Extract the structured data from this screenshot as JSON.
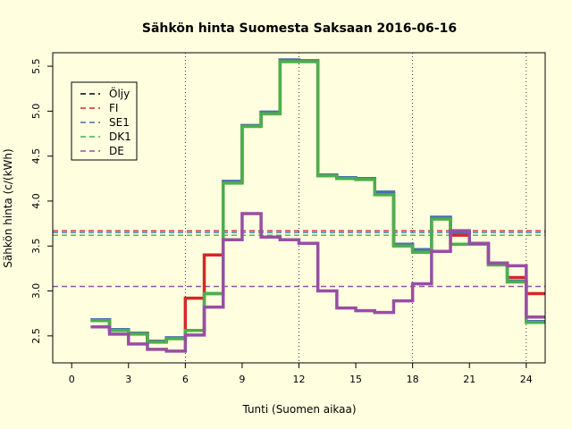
{
  "chart_data": {
    "type": "line",
    "title": "Sähkön hinta Suomesta Saksaan 2016-06-16",
    "xlabel": "Tunti (Suomen aikaa)",
    "ylabel": "Sähkön hinta (c/(kWh)",
    "xlim": [
      -1,
      25
    ],
    "ylim": [
      2.2,
      5.65
    ],
    "x_ticks": [
      0,
      3,
      6,
      9,
      12,
      15,
      18,
      21,
      24
    ],
    "y_ticks": [
      2.5,
      3.0,
      3.5,
      4.0,
      4.5,
      5.0,
      5.5
    ],
    "y_tick_labels": [
      "2.5",
      "3.0",
      "3.5",
      "4.0",
      "4.5",
      "5.0",
      "5.5"
    ],
    "vertical_gridlines": [
      6,
      12,
      18,
      24
    ],
    "step_style": "step-after",
    "x": [
      1,
      2,
      3,
      4,
      5,
      6,
      7,
      8,
      9,
      10,
      11,
      12,
      13,
      14,
      15,
      16,
      17,
      18,
      19,
      20,
      21,
      22,
      23,
      24,
      25
    ],
    "series": [
      {
        "name": "FI",
        "color": "#d62728",
        "width": 3.5,
        "values": [
          2.68,
          2.57,
          2.53,
          2.44,
          2.47,
          2.92,
          3.4,
          4.21,
          4.84,
          4.98,
          5.56,
          5.56,
          4.28,
          4.25,
          4.25,
          4.08,
          3.51,
          3.45,
          3.81,
          3.62,
          3.53,
          3.31,
          3.15,
          2.97,
          2.97
        ]
      },
      {
        "name": "SE1",
        "color": "#4a6fb0",
        "width": 3.5,
        "values": [
          2.68,
          2.57,
          2.53,
          2.44,
          2.48,
          2.56,
          2.97,
          4.22,
          4.84,
          4.99,
          5.57,
          5.56,
          4.29,
          4.26,
          4.25,
          4.1,
          3.52,
          3.46,
          3.82,
          3.65,
          3.53,
          3.31,
          3.11,
          2.66,
          2.66
        ]
      },
      {
        "name": "DK1",
        "color": "#4daf4a",
        "width": 3.5,
        "values": [
          2.67,
          2.56,
          2.52,
          2.43,
          2.47,
          2.56,
          2.97,
          4.2,
          4.83,
          4.97,
          5.55,
          5.55,
          4.28,
          4.25,
          4.24,
          4.07,
          3.5,
          3.43,
          3.8,
          3.52,
          3.52,
          3.29,
          3.1,
          2.65,
          2.65
        ]
      },
      {
        "name": "DE",
        "color": "#984ea3",
        "width": 3.5,
        "values": [
          2.6,
          2.52,
          2.41,
          2.35,
          2.33,
          2.51,
          2.82,
          3.57,
          3.86,
          3.6,
          3.57,
          3.53,
          3.0,
          2.81,
          2.78,
          2.76,
          2.89,
          3.08,
          3.44,
          3.67,
          3.53,
          3.31,
          3.28,
          2.71,
          2.71
        ]
      }
    ],
    "reference_lines": [
      {
        "name": "Öljy",
        "color": "#000000",
        "value": null
      },
      {
        "name": "FI",
        "color": "#d62728",
        "value": 3.67
      },
      {
        "name": "SE1",
        "color": "#4a6fb0",
        "value": 3.65
      },
      {
        "name": "DK1",
        "color": "#4daf4a",
        "value": 3.62
      },
      {
        "name": "DE",
        "color": "#984ea3",
        "value": 3.05
      }
    ],
    "legend": {
      "position": "top-left",
      "entries": [
        {
          "label": "Öljy",
          "color": "#000000"
        },
        {
          "label": "FI",
          "color": "#d62728"
        },
        {
          "label": "SE1",
          "color": "#4a6fb0"
        },
        {
          "label": "DK1",
          "color": "#4daf4a"
        },
        {
          "label": "DE",
          "color": "#984ea3"
        }
      ]
    }
  }
}
